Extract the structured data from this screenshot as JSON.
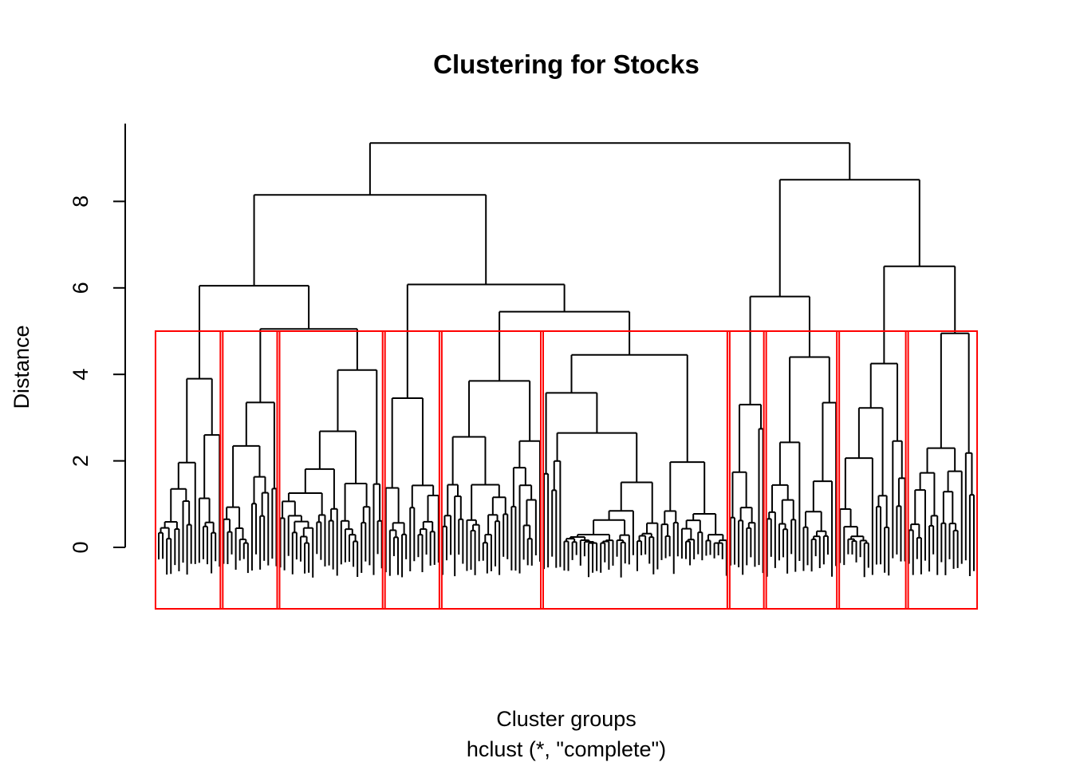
{
  "chart_data": {
    "type": "dendrogram",
    "title": "Clustering for Stocks",
    "xlabel": "Cluster groups",
    "sub": "hclust (*, \"complete\")",
    "ylabel": "Distance",
    "ylim": [
      0,
      9.4
    ],
    "y_ticks": [
      0,
      2,
      4,
      6,
      8
    ],
    "y_tick_labels": [
      "0",
      "2",
      "4",
      "6",
      "8"
    ],
    "cut_height": 5.0,
    "n_clusters": 10,
    "cluster_box_color": "#ff0000",
    "line_color": "#000000",
    "top_merges": [
      {
        "height": 9.35,
        "description": "root"
      },
      {
        "height": 8.15,
        "description": "left main branch"
      },
      {
        "height": 8.5,
        "description": "right main branch"
      },
      {
        "height": 6.05,
        "description": "left-left branch"
      },
      {
        "height": 6.08,
        "description": "left-right branch"
      },
      {
        "height": 6.5,
        "description": "right-right branch"
      },
      {
        "height": 5.8,
        "description": "right-left branch"
      },
      {
        "height": 5.45,
        "description": "inner left-right branch"
      },
      {
        "height": 5.05,
        "description": "small left branch"
      }
    ],
    "clusters": [
      {
        "id": 1,
        "leaves": 16,
        "height": 3.9
      },
      {
        "id": 2,
        "leaves": 14,
        "height": 3.35
      },
      {
        "id": 3,
        "leaves": 26,
        "height": 4.1
      },
      {
        "id": 4,
        "leaves": 14,
        "height": 3.45
      },
      {
        "id": 5,
        "leaves": 25,
        "height": 3.85
      },
      {
        "id": 6,
        "leaves": 46,
        "height": 4.45
      },
      {
        "id": 7,
        "leaves": 9,
        "height": 3.3
      },
      {
        "id": 8,
        "leaves": 18,
        "height": 4.4
      },
      {
        "id": 9,
        "leaves": 17,
        "height": 4.25
      },
      {
        "id": 10,
        "leaves": 17,
        "height": 4.95
      }
    ]
  }
}
